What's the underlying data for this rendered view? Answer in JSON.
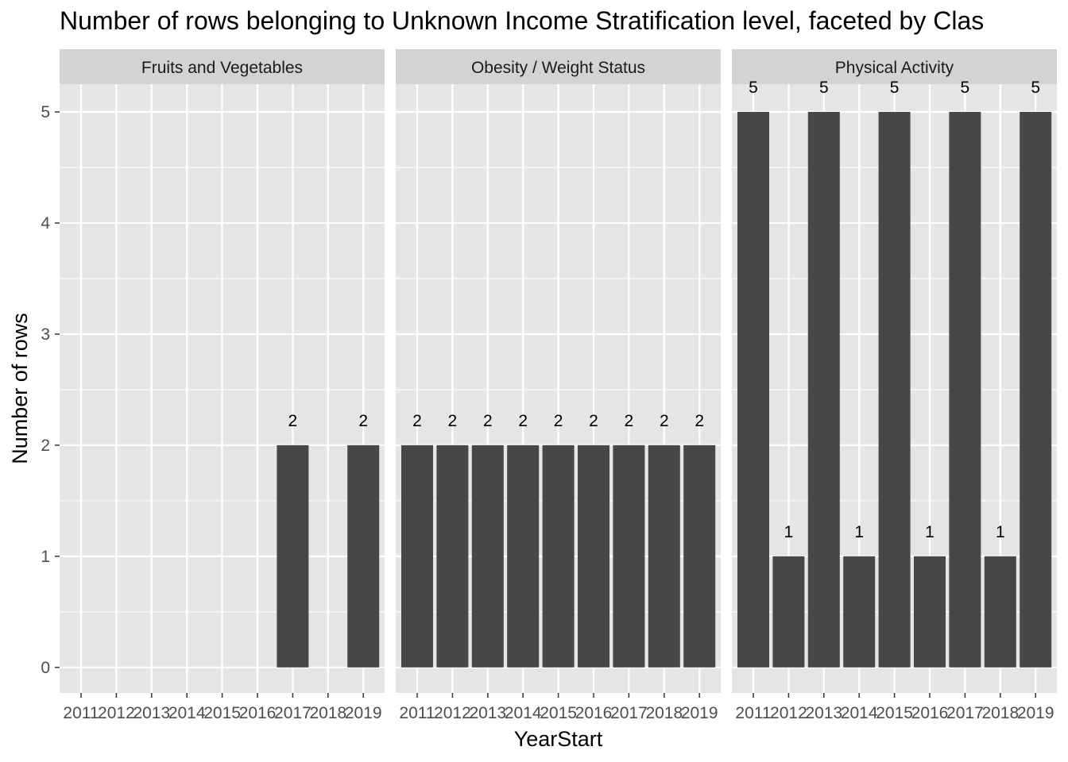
{
  "chart_data": {
    "type": "bar",
    "title": "Number of rows belonging to Unknown Income Stratification level, faceted by Clas",
    "xlabel": "YearStart",
    "ylabel": "Number of rows",
    "ylim": [
      -0.23,
      5.25
    ],
    "yticks": [
      "0",
      "1",
      "2",
      "3",
      "4",
      "5"
    ],
    "categories": [
      "2011",
      "2012",
      "2013",
      "2014",
      "2015",
      "2016",
      "2017",
      "2018",
      "2019"
    ],
    "grid": true,
    "facets": [
      {
        "name": "Fruits and Vegetables",
        "values": [
          null,
          null,
          null,
          null,
          null,
          null,
          2,
          null,
          2
        ]
      },
      {
        "name": "Obesity / Weight Status",
        "values": [
          2,
          2,
          2,
          2,
          2,
          2,
          2,
          2,
          2
        ]
      },
      {
        "name": "Physical Activity",
        "values": [
          5,
          1,
          5,
          1,
          5,
          1,
          5,
          1,
          5
        ]
      }
    ],
    "colors": {
      "bar": "#474747",
      "panel_bg": "#e5e5e5",
      "strip_bg": "#d3d3d3",
      "grid": "#ffffff",
      "text": "#4d4d4d"
    }
  }
}
